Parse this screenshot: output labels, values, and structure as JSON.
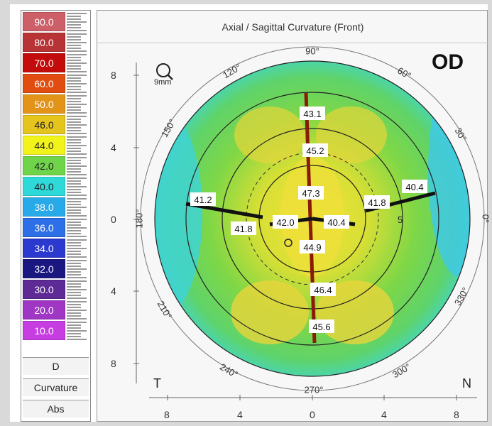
{
  "scale": {
    "values": [
      "90.0",
      "80.0",
      "70.0",
      "60.0",
      "50.0",
      "46.0",
      "44.0",
      "42.0",
      "40.0",
      "38.0",
      "36.0",
      "34.0",
      "32.0",
      "30.0",
      "20.0",
      "10.0"
    ],
    "colors": [
      "#cc5f68",
      "#b83336",
      "#c40b0b",
      "#e14d10",
      "#e29419",
      "#e6c41e",
      "#f2f31b",
      "#6fd44a",
      "#30d9d9",
      "#28a9e8",
      "#2c6fe6",
      "#2b39cf",
      "#1a1880",
      "#5d2a96",
      "#9f36c4",
      "#c63ee1"
    ],
    "text_colors": [
      "#ffffff",
      "#ffffff",
      "#ffffff",
      "#ffffff",
      "#ffffff",
      "#222222",
      "#222222",
      "#222222",
      "#222222",
      "#ffffff",
      "#ffffff",
      "#ffffff",
      "#ffffff",
      "#ffffff",
      "#ffffff",
      "#ffffff"
    ],
    "buttons": [
      "D",
      "Curvature",
      "Abs"
    ]
  },
  "map": {
    "title": "Axial / Sagittal Curvature (Front)",
    "eye": "OD",
    "zoom_label": "9mm",
    "corner_left": "T",
    "corner_right": "N",
    "angles": [
      "90°",
      "60°",
      "30°",
      "0°",
      "330°",
      "300°",
      "270°",
      "240°",
      "210°",
      "180°",
      "150°",
      "120°"
    ],
    "x_ticks": [
      "8",
      "4",
      "0",
      "4",
      "8"
    ],
    "y_ticks": [
      "8",
      "4",
      "0",
      "4",
      "8"
    ],
    "ring_label": "5",
    "readings": [
      "43.1",
      "45.2",
      "47.3",
      "41.8",
      "40.4",
      "41.2",
      "41.8",
      "42.0",
      "40.4",
      "44.9",
      "46.4",
      "45.6"
    ]
  }
}
